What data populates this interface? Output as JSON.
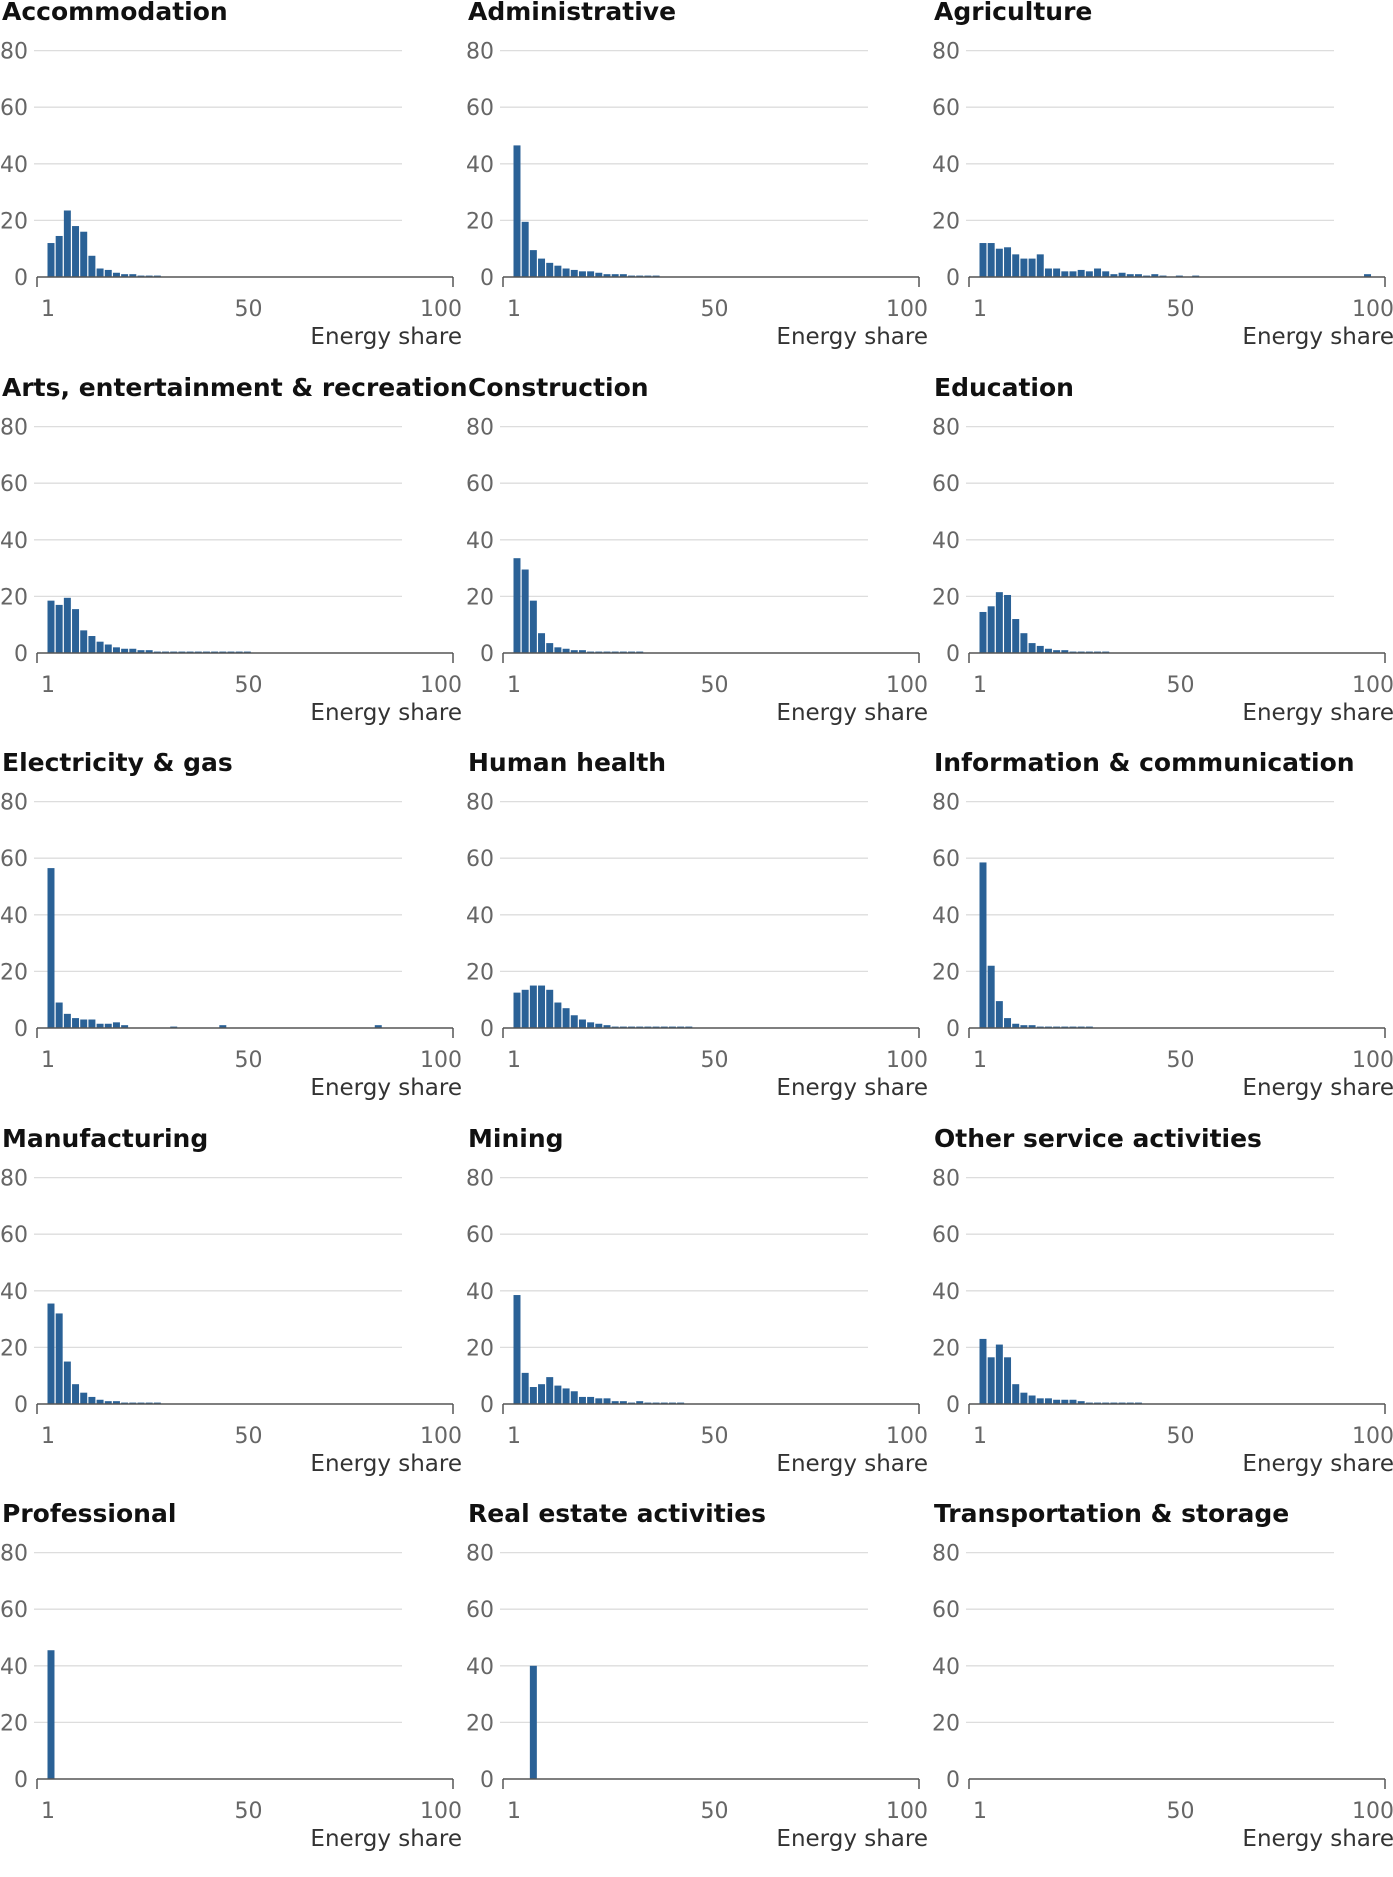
{
  "chart_data": {
    "type": "bar",
    "x_ticks": [
      1,
      50,
      100
    ],
    "y_ticks": [
      0,
      20,
      40,
      60,
      80
    ],
    "xlim": [
      1,
      100
    ],
    "ylim": [
      0,
      80
    ],
    "xlabel": "Energy share",
    "ylabel": "",
    "bin_width": 2,
    "grid": "horizontal",
    "bar_color": "#2a6196",
    "grid_color": "#dddddd",
    "panels": [
      {
        "title": "Accommodation",
        "values": [
          12,
          14.5,
          23.5,
          18,
          16,
          7.5,
          3,
          2.5,
          1.5,
          1,
          1,
          0.5,
          0.5,
          0.5
        ]
      },
      {
        "title": "Administrative",
        "values": [
          46.5,
          19.5,
          9.5,
          6.5,
          5,
          4,
          3,
          2.5,
          2,
          2,
          1.5,
          1,
          1,
          1,
          0.5,
          0.5,
          0.5,
          0.5
        ]
      },
      {
        "title": "Agriculture",
        "values": [
          12,
          12,
          10,
          10.5,
          8,
          6.5,
          6.5,
          8,
          3,
          3,
          2,
          2,
          2.5,
          2,
          3,
          2,
          1,
          1.5,
          1,
          1,
          0.5,
          1,
          0.5,
          0,
          0.5,
          0,
          0.5,
          0,
          0,
          0,
          0,
          0,
          0,
          0,
          0,
          0,
          0,
          0,
          0,
          0,
          0,
          0,
          0,
          0,
          0,
          0,
          0,
          1,
          0
        ]
      },
      {
        "title": "Arts, entertainment & recreation",
        "values": [
          18.5,
          17,
          19.5,
          15.5,
          8,
          6,
          4,
          3,
          2,
          1.5,
          1.5,
          1,
          1,
          0.5,
          0.5,
          0.5,
          0.5,
          0.5,
          0.5,
          0.5,
          0.5,
          0.5,
          0.5,
          0.5,
          0.5
        ]
      },
      {
        "title": "Construction",
        "values": [
          33.5,
          29.5,
          18.5,
          7,
          3.5,
          2,
          1.5,
          1,
          1,
          0.5,
          0.5,
          0.5,
          0.5,
          0.5,
          0.5,
          0.5
        ]
      },
      {
        "title": "Education",
        "values": [
          14.5,
          16.5,
          21.5,
          20.5,
          12,
          7,
          3.5,
          2.5,
          1.5,
          1,
          1,
          0.5,
          0.5,
          0.5,
          0.5,
          0.5
        ]
      },
      {
        "title": "Electricity & gas",
        "values": [
          56.5,
          9,
          5,
          3.5,
          3,
          3,
          1.5,
          1.5,
          2,
          1,
          0,
          0,
          0,
          0,
          0,
          0.5,
          0,
          0,
          0,
          0,
          0,
          1,
          0,
          0,
          0,
          0,
          0,
          0,
          0,
          0,
          0,
          0,
          0,
          0,
          0,
          0,
          0,
          0,
          0,
          0,
          1
        ]
      },
      {
        "title": "Human health",
        "values": [
          12.5,
          13.5,
          15,
          15,
          13.5,
          9,
          7,
          4.5,
          3,
          2,
          1.5,
          1,
          0.5,
          0.5,
          0.5,
          0.5,
          0.5,
          0.5,
          0.5,
          0.5,
          0.5,
          0.5
        ]
      },
      {
        "title": "Information & communication",
        "values": [
          58.5,
          22,
          9.5,
          3.5,
          1.5,
          1,
          1,
          0.5,
          0.5,
          0.5,
          0.5,
          0.5,
          0.5,
          0.5
        ]
      },
      {
        "title": "Manufacturing",
        "values": [
          35.5,
          32,
          15,
          7,
          4,
          2.5,
          1.5,
          1,
          1,
          0.5,
          0.5,
          0.5,
          0.5,
          0.5
        ]
      },
      {
        "title": "Mining",
        "values": [
          38.5,
          11,
          6,
          7,
          9.5,
          6.5,
          5.5,
          4.5,
          2.5,
          2.5,
          2,
          2,
          1,
          1,
          0.5,
          1,
          0.5,
          0.5,
          0.5,
          0.5,
          0.5
        ]
      },
      {
        "title": "Other service activities",
        "values": [
          23,
          16.5,
          21,
          16.5,
          7,
          4,
          3,
          2,
          2,
          1.5,
          1.5,
          1.5,
          1,
          0.5,
          0.5,
          0.5,
          0.5,
          0.5,
          0.5,
          0.5
        ]
      },
      {
        "title": "Professional",
        "values": [
          45.5
        ]
      },
      {
        "title": "Real estate activities",
        "values": [
          0,
          0,
          40
        ]
      },
      {
        "title": "Transportation & storage",
        "values": []
      }
    ]
  }
}
